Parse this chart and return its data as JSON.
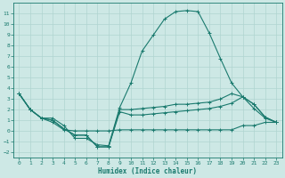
{
  "xlabel": "Humidex (Indice chaleur)",
  "bg_color": "#cde8e5",
  "grid_color": "#b0d4d0",
  "line_color": "#1a7a6e",
  "xlim": [
    -0.5,
    23.5
  ],
  "ylim": [
    -2.5,
    12.0
  ],
  "xticks": [
    0,
    1,
    2,
    3,
    4,
    5,
    6,
    7,
    8,
    9,
    10,
    11,
    12,
    13,
    14,
    15,
    16,
    17,
    18,
    19,
    20,
    21,
    22,
    23
  ],
  "yticks": [
    -2,
    -1,
    0,
    1,
    2,
    3,
    4,
    5,
    6,
    7,
    8,
    9,
    10,
    11
  ],
  "line1_x": [
    0,
    1,
    2,
    3,
    4,
    5,
    6,
    7,
    8,
    9,
    10,
    11,
    12,
    13,
    14,
    15,
    16,
    17,
    18,
    19,
    20,
    21,
    22,
    23
  ],
  "line1_y": [
    3.5,
    2.0,
    1.2,
    1.2,
    0.5,
    -0.7,
    -0.7,
    -1.3,
    -1.4,
    2.2,
    4.5,
    7.5,
    9.0,
    10.5,
    11.2,
    11.3,
    11.2,
    9.2,
    6.8,
    4.5,
    3.2,
    2.1,
    1.2,
    0.8
  ],
  "line2_x": [
    0,
    1,
    2,
    3,
    4,
    5,
    6,
    7,
    8,
    9,
    10,
    11,
    12,
    13,
    14,
    15,
    16,
    17,
    18,
    19,
    20,
    21,
    22,
    23
  ],
  "line2_y": [
    3.5,
    2.0,
    1.2,
    1.0,
    0.2,
    -0.4,
    -0.4,
    -1.5,
    -1.5,
    2.0,
    2.0,
    2.1,
    2.2,
    2.3,
    2.5,
    2.5,
    2.6,
    2.7,
    3.0,
    3.5,
    3.2,
    2.5,
    1.3,
    0.8
  ],
  "line3_x": [
    0,
    1,
    2,
    3,
    4,
    5,
    6,
    7,
    8,
    9,
    10,
    11,
    12,
    13,
    14,
    15,
    16,
    17,
    18,
    19,
    20,
    21,
    22,
    23
  ],
  "line3_y": [
    3.5,
    2.0,
    1.2,
    1.0,
    0.2,
    -0.4,
    -0.4,
    -1.5,
    -1.5,
    1.8,
    1.5,
    1.5,
    1.6,
    1.7,
    1.8,
    1.9,
    2.0,
    2.1,
    2.3,
    2.6,
    3.2,
    2.5,
    1.3,
    0.8
  ],
  "line4_x": [
    0,
    1,
    2,
    3,
    4,
    5,
    6,
    7,
    8,
    9,
    10,
    11,
    12,
    13,
    14,
    15,
    16,
    17,
    18,
    19,
    20,
    21,
    22,
    23
  ],
  "line4_y": [
    3.5,
    2.0,
    1.2,
    0.8,
    0.1,
    0.0,
    0.0,
    0.0,
    0.0,
    0.1,
    0.1,
    0.1,
    0.1,
    0.1,
    0.1,
    0.1,
    0.1,
    0.1,
    0.1,
    0.1,
    0.5,
    0.5,
    0.8,
    0.8
  ]
}
